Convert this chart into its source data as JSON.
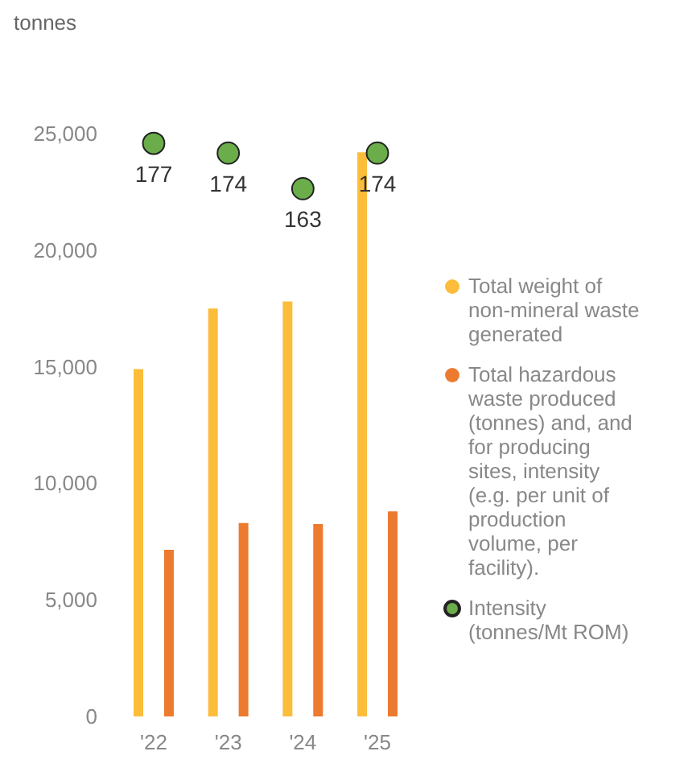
{
  "chart_data": {
    "type": "bar",
    "ylabel": "tonnes",
    "categories": [
      "'22",
      "'23",
      "'24",
      "'25"
    ],
    "series": [
      {
        "name": "Total weight of non-mineral waste generated",
        "color": "#fbbd3a",
        "values": [
          14900,
          17500,
          17800,
          24200
        ]
      },
      {
        "name": "Total hazardous waste produced (tonnes) and, and for producing sites, intensity (e.g. per unit of production volume, per facility).",
        "color": "#ec7a2f",
        "values": [
          7150,
          8300,
          8250,
          8800
        ]
      },
      {
        "name": "Intensity (tonnes/Mt ROM)",
        "type": "scatter",
        "axis": "y2",
        "color": "#6aad4a",
        "values": [
          177,
          174,
          163,
          174
        ],
        "value_labels": [
          "177",
          "174",
          "163",
          "174"
        ]
      }
    ],
    "ylim": [
      0,
      25000
    ],
    "yticks": [
      0,
      {
        "value": 5000,
        "label": "5,000"
      },
      {
        "value": 10000,
        "label": "10,000"
      },
      {
        "value": 15000,
        "label": "15,000"
      },
      {
        "value": 20000,
        "label": "20,000"
      },
      {
        "value": 25000,
        "label": "25,000"
      }
    ],
    "grid": false,
    "legend": "right",
    "marker": "circle"
  }
}
